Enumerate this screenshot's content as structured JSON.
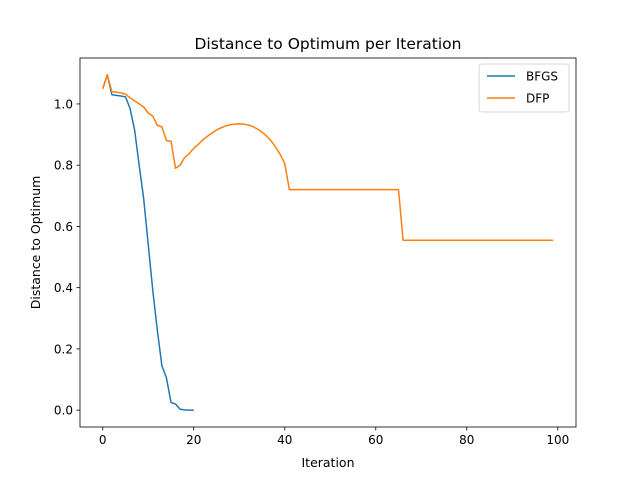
{
  "chart_data": {
    "type": "line",
    "title": "Distance to Optimum per Iteration",
    "xlabel": "Iteration",
    "ylabel": "Distance to Optimum",
    "xlim": [
      -5,
      104
    ],
    "ylim": [
      -0.055,
      1.15
    ],
    "xticks": [
      0,
      20,
      40,
      60,
      80,
      100
    ],
    "yticks": [
      0.0,
      0.2,
      0.4,
      0.6,
      0.8,
      1.0
    ],
    "xtick_labels": [
      "0",
      "20",
      "40",
      "60",
      "80",
      "100"
    ],
    "ytick_labels": [
      "0.0",
      "0.2",
      "0.4",
      "0.6",
      "0.8",
      "1.0"
    ],
    "grid": false,
    "legend": "top-right",
    "series": [
      {
        "name": "BFGS",
        "color": "#1f77b4",
        "x": [
          0,
          1,
          2,
          3,
          4,
          5,
          6,
          7,
          8,
          9,
          10,
          11,
          12,
          13,
          14,
          15,
          16,
          17,
          18,
          19,
          20
        ],
        "y": [
          1.05,
          1.095,
          1.03,
          1.028,
          1.026,
          1.023,
          0.985,
          0.915,
          0.8,
          0.69,
          0.54,
          0.39,
          0.26,
          0.145,
          0.105,
          0.025,
          0.02,
          0.003,
          0.001,
          0.0,
          0.0
        ]
      },
      {
        "name": "DFP",
        "color": "#ff7f0e",
        "x": [
          0,
          1,
          2,
          3,
          4,
          5,
          6,
          7,
          8,
          9,
          10,
          11,
          12,
          13,
          14,
          15,
          16,
          17,
          18,
          19,
          20,
          21,
          22,
          23,
          24,
          25,
          26,
          27,
          28,
          29,
          30,
          31,
          32,
          33,
          34,
          35,
          36,
          37,
          38,
          39,
          40,
          41,
          42,
          43,
          44,
          45,
          46,
          47,
          48,
          49,
          50,
          51,
          52,
          53,
          54,
          55,
          56,
          57,
          58,
          59,
          60,
          61,
          62,
          63,
          64,
          65,
          66,
          67,
          68,
          69,
          70,
          71,
          72,
          73,
          74,
          75,
          76,
          77,
          78,
          79,
          80,
          81,
          82,
          83,
          84,
          85,
          86,
          87,
          88,
          89,
          90,
          91,
          92,
          93,
          94,
          95,
          96,
          97,
          98,
          99
        ],
        "y": [
          1.05,
          1.095,
          1.04,
          1.038,
          1.036,
          1.032,
          1.02,
          1.01,
          1.0,
          0.99,
          0.97,
          0.96,
          0.93,
          0.925,
          0.88,
          0.878,
          0.79,
          0.8,
          0.825,
          0.838,
          0.855,
          0.868,
          0.883,
          0.894,
          0.905,
          0.915,
          0.922,
          0.928,
          0.932,
          0.934,
          0.935,
          0.934,
          0.931,
          0.926,
          0.918,
          0.908,
          0.895,
          0.879,
          0.859,
          0.835,
          0.805,
          0.72,
          0.72,
          0.72,
          0.72,
          0.72,
          0.72,
          0.72,
          0.72,
          0.72,
          0.72,
          0.72,
          0.72,
          0.72,
          0.72,
          0.72,
          0.72,
          0.72,
          0.72,
          0.72,
          0.72,
          0.72,
          0.72,
          0.72,
          0.72,
          0.72,
          0.555,
          0.555,
          0.555,
          0.555,
          0.555,
          0.555,
          0.555,
          0.555,
          0.555,
          0.555,
          0.555,
          0.555,
          0.555,
          0.555,
          0.555,
          0.555,
          0.555,
          0.555,
          0.555,
          0.555,
          0.555,
          0.555,
          0.555,
          0.555,
          0.555,
          0.555,
          0.555,
          0.555,
          0.555,
          0.555,
          0.555,
          0.555,
          0.555,
          0.555
        ]
      }
    ]
  }
}
